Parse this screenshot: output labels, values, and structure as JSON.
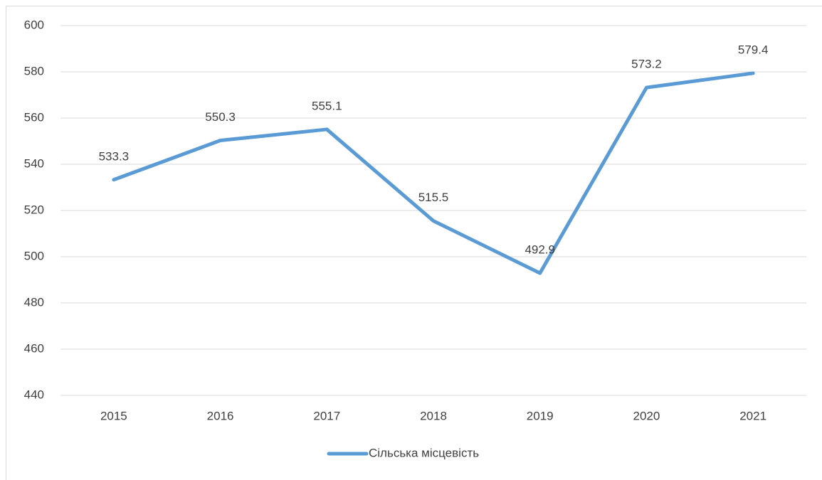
{
  "chart_data": {
    "type": "line",
    "categories": [
      "2015",
      "2016",
      "2017",
      "2018",
      "2019",
      "2020",
      "2021"
    ],
    "series": [
      {
        "name": "Сільська місцевість",
        "color": "#5b9bd5",
        "values": [
          533.3,
          550.3,
          555.1,
          515.5,
          492.9,
          573.2,
          579.4
        ]
      }
    ],
    "ylim": [
      440,
      600
    ],
    "yticks": [
      440,
      460,
      480,
      500,
      520,
      540,
      560,
      580,
      600
    ],
    "grid": true,
    "legend": "bottom",
    "data_labels": true
  }
}
